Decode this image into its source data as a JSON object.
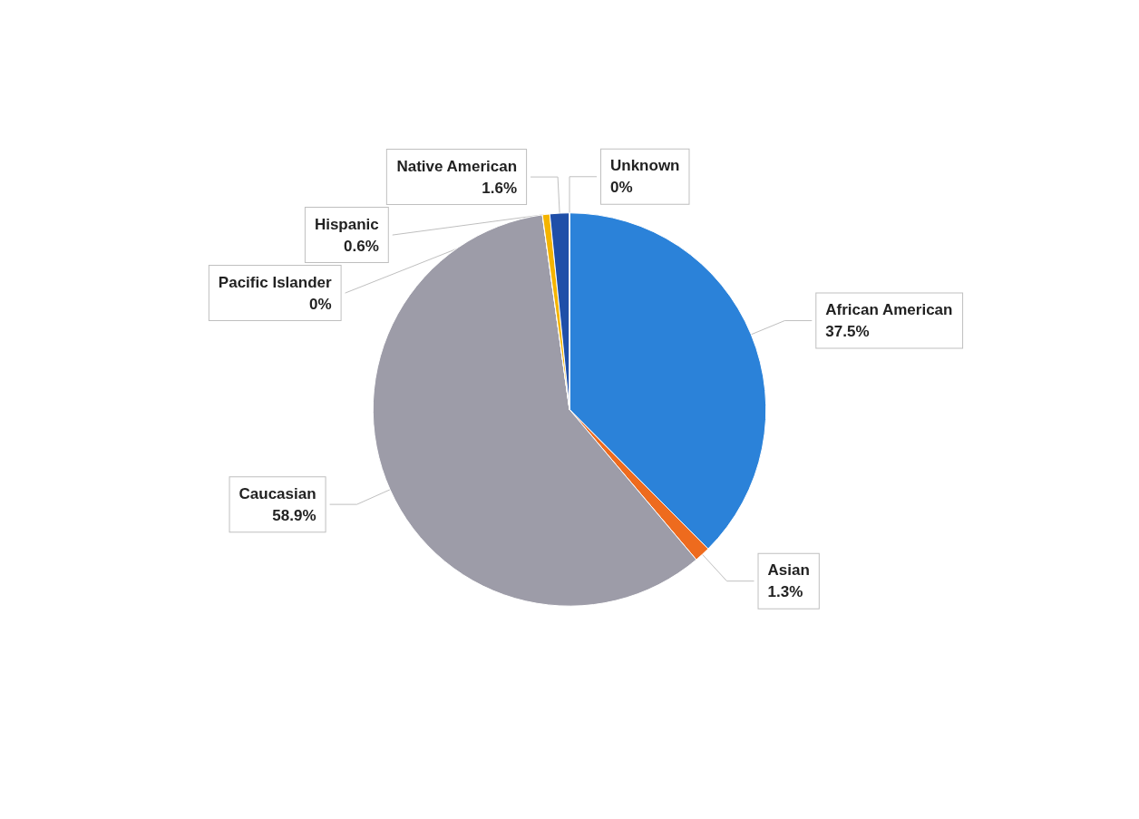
{
  "chart_data": {
    "type": "pie",
    "categories": [
      "African American",
      "Asian",
      "Caucasian",
      "Pacific Islander",
      "Hispanic",
      "Native American",
      "Unknown"
    ],
    "values": [
      37.5,
      1.3,
      58.9,
      0,
      0.6,
      1.6,
      0
    ],
    "value_labels": [
      "37.5%",
      "1.3%",
      "58.9%",
      "0%",
      "0.6%",
      "1.6%",
      "0%"
    ],
    "colors": [
      "#2b82d9",
      "#ee6b1e",
      "#9d9ca8",
      "#5b9bd5",
      "#f4b400",
      "#1f4fa8",
      "#a5a5a5"
    ],
    "legend": false
  }
}
